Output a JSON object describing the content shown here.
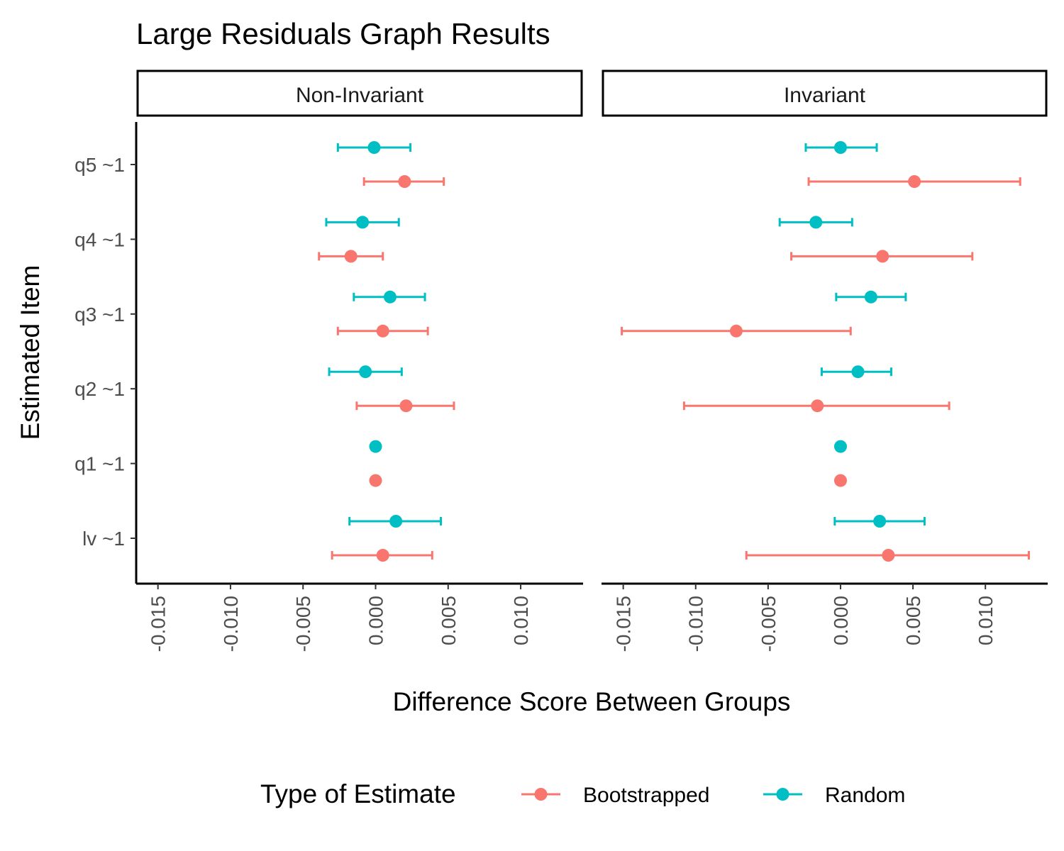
{
  "chart_data": {
    "type": "scatter",
    "subtype": "point-with-errorbars, faceted",
    "title": "Large Residuals Graph Results",
    "xlabel": "Difference Score Between Groups",
    "ylabel": "Estimated Item",
    "xlim": [
      -0.0165,
      0.0143
    ],
    "x_ticks": [
      -0.015,
      -0.01,
      -0.005,
      0.0,
      0.005,
      0.01
    ],
    "x_tick_labels": [
      "-0.015",
      "-0.010",
      "-0.005",
      "0.000",
      "0.005",
      "0.010"
    ],
    "x_tick_rotation": -90,
    "categories": [
      "q5 ~1",
      "q4 ~1",
      "q3 ~1",
      "q2 ~1",
      "q1 ~1",
      "lv ~1"
    ],
    "grid": false,
    "legend": {
      "title": "Type of Estimate",
      "position": "bottom",
      "entries": [
        {
          "name": "Bootstrapped",
          "color": "#F8766D"
        },
        {
          "name": "Random",
          "color": "#00BFC4"
        }
      ]
    },
    "facets": [
      {
        "label": "Non-Invariant",
        "series": [
          {
            "name": "Random",
            "color": "#00BFC4",
            "points": [
              {
                "item": "q5 ~1",
                "est": -0.0001,
                "low": -0.0026,
                "high": 0.0024
              },
              {
                "item": "q4 ~1",
                "est": -0.0009,
                "low": -0.0034,
                "high": 0.0016
              },
              {
                "item": "q3 ~1",
                "est": 0.001,
                "low": -0.0015,
                "high": 0.0034
              },
              {
                "item": "q2 ~1",
                "est": -0.0007,
                "low": -0.0032,
                "high": 0.0018
              },
              {
                "item": "q1 ~1",
                "est": 0.0,
                "low": 0.0,
                "high": 0.0
              },
              {
                "item": "lv ~1",
                "est": 0.0014,
                "low": -0.0018,
                "high": 0.0045
              }
            ]
          },
          {
            "name": "Bootstrapped",
            "color": "#F8766D",
            "points": [
              {
                "item": "q5 ~1",
                "est": 0.002,
                "low": -0.0008,
                "high": 0.0047
              },
              {
                "item": "q4 ~1",
                "est": -0.0017,
                "low": -0.0039,
                "high": 0.0005
              },
              {
                "item": "q3 ~1",
                "est": 0.0005,
                "low": -0.0026,
                "high": 0.0036
              },
              {
                "item": "q2 ~1",
                "est": 0.0021,
                "low": -0.0013,
                "high": 0.0054
              },
              {
                "item": "q1 ~1",
                "est": 0.0,
                "low": 0.0,
                "high": 0.0
              },
              {
                "item": "lv ~1",
                "est": 0.0005,
                "low": -0.003,
                "high": 0.0039
              }
            ]
          }
        ]
      },
      {
        "label": "Invariant",
        "series": [
          {
            "name": "Random",
            "color": "#00BFC4",
            "points": [
              {
                "item": "q5 ~1",
                "est": 0.0,
                "low": -0.0024,
                "high": 0.0025
              },
              {
                "item": "q4 ~1",
                "est": -0.0017,
                "low": -0.0042,
                "high": 0.0008
              },
              {
                "item": "q3 ~1",
                "est": 0.0021,
                "low": -0.0003,
                "high": 0.0045
              },
              {
                "item": "q2 ~1",
                "est": 0.0012,
                "low": -0.0013,
                "high": 0.0035
              },
              {
                "item": "q1 ~1",
                "est": 0.0,
                "low": 0.0,
                "high": 0.0
              },
              {
                "item": "lv ~1",
                "est": 0.0027,
                "low": -0.0004,
                "high": 0.0058
              }
            ]
          },
          {
            "name": "Bootstrapped",
            "color": "#F8766D",
            "points": [
              {
                "item": "q5 ~1",
                "est": 0.0051,
                "low": -0.0022,
                "high": 0.0124
              },
              {
                "item": "q4 ~1",
                "est": 0.0029,
                "low": -0.0034,
                "high": 0.0091
              },
              {
                "item": "q3 ~1",
                "est": -0.0072,
                "low": -0.0151,
                "high": 0.0007
              },
              {
                "item": "q2 ~1",
                "est": -0.0016,
                "low": -0.0108,
                "high": 0.0075
              },
              {
                "item": "q1 ~1",
                "est": 0.0,
                "low": 0.0,
                "high": 0.0
              },
              {
                "item": "lv ~1",
                "est": 0.0033,
                "low": -0.0065,
                "high": 0.013
              }
            ]
          }
        ]
      }
    ]
  }
}
